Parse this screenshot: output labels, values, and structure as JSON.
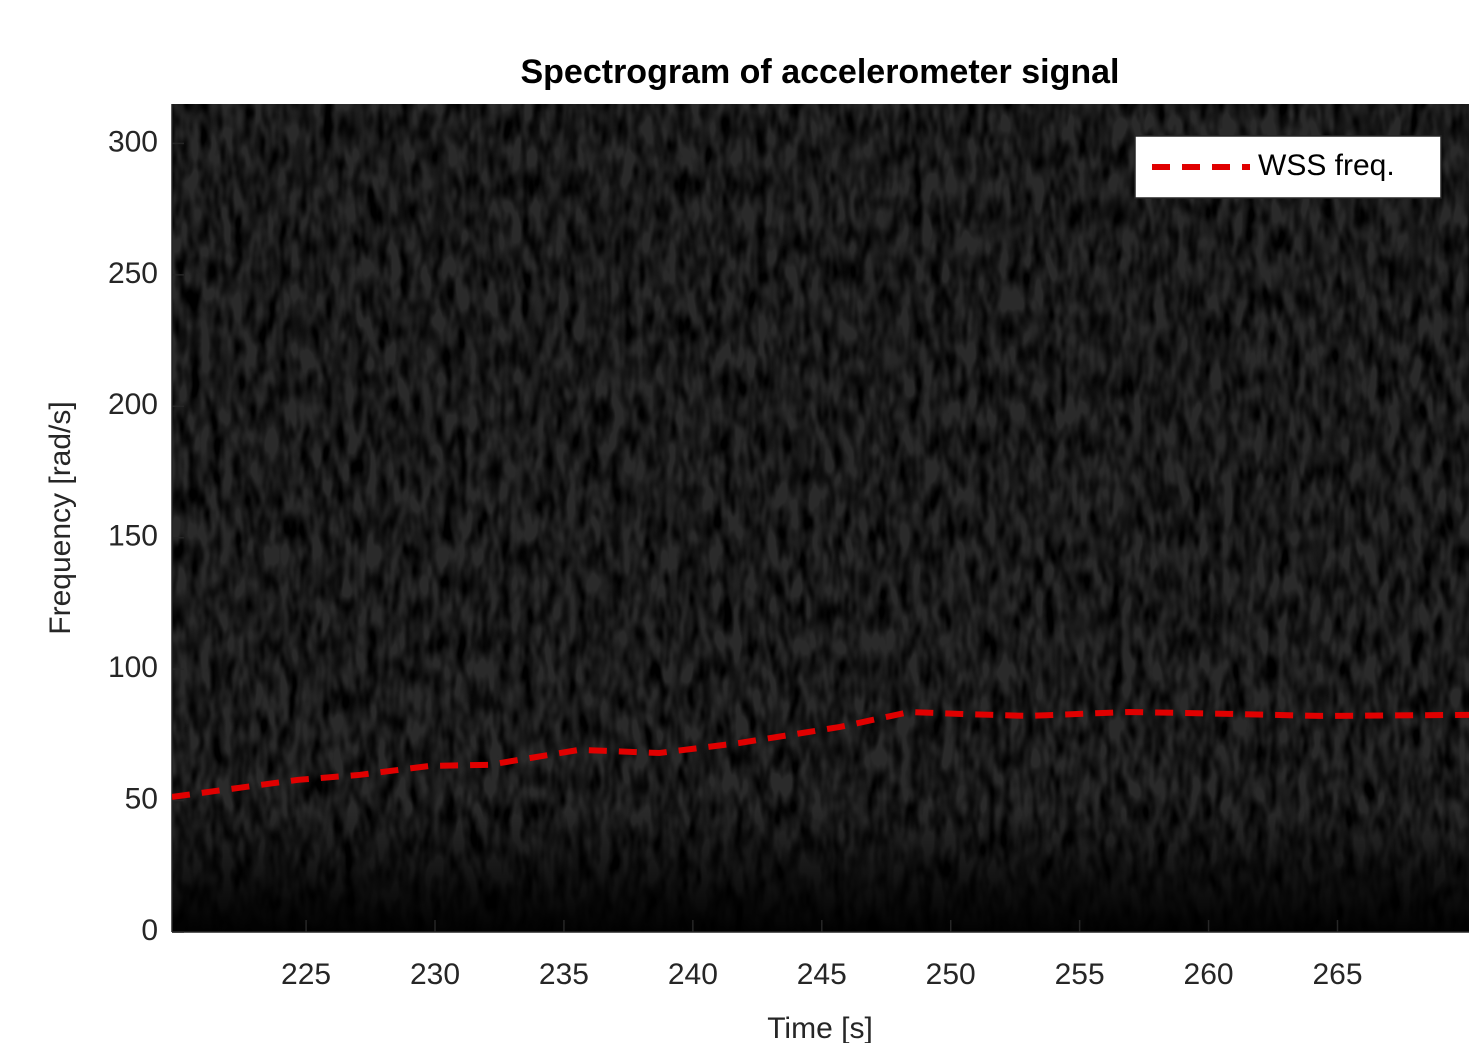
{
  "chart_data": {
    "type": "line",
    "title": "Spectrogram of accelerometer signal",
    "x_label": "Time [s]",
    "y_label": "Frequency [rad/s]",
    "xlim": [
      219.8,
      270.1
    ],
    "ylim": [
      0,
      315
    ],
    "xticks": [
      225,
      230,
      235,
      240,
      245,
      250,
      255,
      260,
      265
    ],
    "yticks": [
      0,
      50,
      100,
      150,
      200,
      250,
      300
    ],
    "grid": false,
    "legend": "upper right",
    "x": [
      219.8,
      224.7,
      227.1,
      229.8,
      232.1,
      235.6,
      238.7,
      241.8,
      245.7,
      248.4,
      250.3,
      253.0,
      256.9,
      260.8,
      264.3,
      270.1
    ],
    "series": [
      {
        "name": "WSS freq.",
        "color": "#e00000",
        "values": [
          51.4,
          57.9,
          59.8,
          63.2,
          63.6,
          69.3,
          68.1,
          71.9,
          78.0,
          83.7,
          83.0,
          82.2,
          83.7,
          83.0,
          82.2,
          82.6
        ]
      }
    ]
  }
}
